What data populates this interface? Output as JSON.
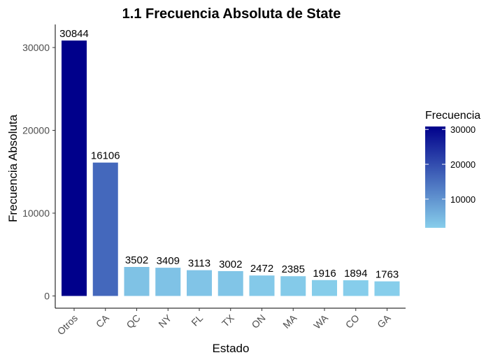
{
  "chart_data": {
    "type": "bar",
    "title": "1.1 Frecuencia Absoluta de State",
    "xlabel": "Estado",
    "ylabel": "Frecuencia Absoluta",
    "categories": [
      "Otros",
      "CA",
      "QC",
      "NY",
      "FL",
      "TX",
      "ON",
      "MA",
      "WA",
      "CO",
      "GA"
    ],
    "values": [
      30844,
      16106,
      3502,
      3409,
      3113,
      3002,
      2472,
      2385,
      1916,
      1894,
      1763
    ],
    "ylim": [
      0,
      32000
    ],
    "yticks": [
      0,
      10000,
      20000,
      30000
    ],
    "grid": false,
    "color_scale": {
      "low": "#87CEEB",
      "high": "#00008B"
    },
    "legend": {
      "title": "Frecuencia",
      "placement": "right",
      "ticks": [
        10000,
        20000,
        30000
      ]
    }
  }
}
